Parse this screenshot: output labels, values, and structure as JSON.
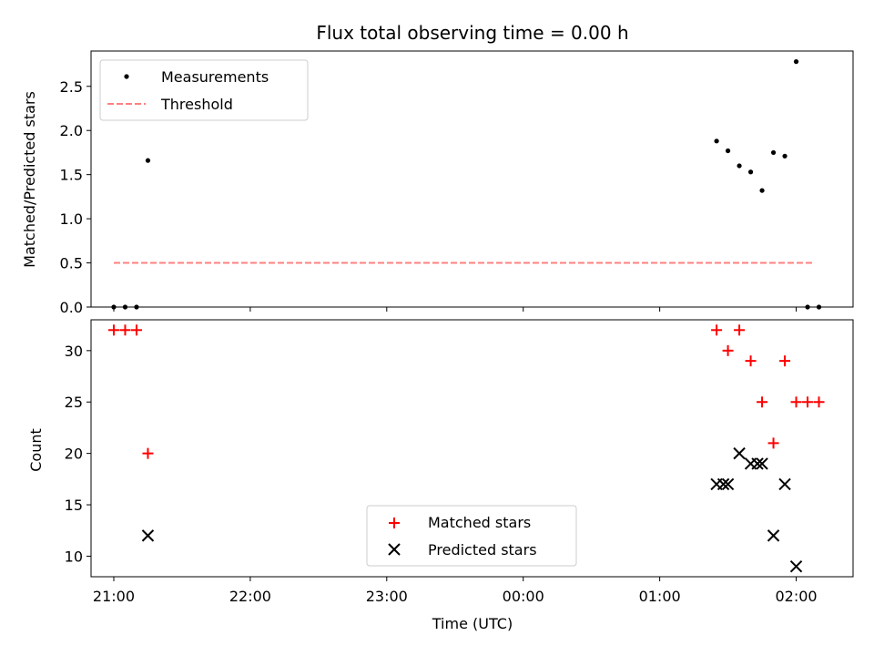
{
  "chart_data": [
    {
      "panel": "top",
      "type": "scatter",
      "title": "Flux total observing time = 0.00 h",
      "ylabel": "Matched/Predicted stars",
      "xlim": [
        "20:50",
        "02:25"
      ],
      "ylim": [
        0,
        2.9
      ],
      "yticks": [
        0.0,
        0.5,
        1.0,
        1.5,
        2.0,
        2.5
      ],
      "ytick_labels": [
        "0.0",
        "0.5",
        "1.0",
        "1.5",
        "2.0",
        "2.5"
      ],
      "legend_position": "upper-left",
      "colors": {
        "measurements": "#000000",
        "threshold": "#ff8080"
      },
      "series": [
        {
          "name": "Measurements",
          "style": "dots",
          "points": [
            {
              "x": "21:00",
              "y": 0.0
            },
            {
              "x": "21:05",
              "y": 0.0
            },
            {
              "x": "21:10",
              "y": 0.0
            },
            {
              "x": "21:15",
              "y": 1.66
            },
            {
              "x": "01:25",
              "y": 1.88
            },
            {
              "x": "01:30",
              "y": 1.77
            },
            {
              "x": "01:35",
              "y": 1.6
            },
            {
              "x": "01:40",
              "y": 1.53
            },
            {
              "x": "01:45",
              "y": 1.32
            },
            {
              "x": "01:50",
              "y": 1.75
            },
            {
              "x": "01:55",
              "y": 1.71
            },
            {
              "x": "02:00",
              "y": 2.78
            },
            {
              "x": "02:05",
              "y": 0.0
            },
            {
              "x": "02:10",
              "y": 0.0
            }
          ]
        },
        {
          "name": "Threshold",
          "style": "dashed-line",
          "points": [
            {
              "x": "21:00",
              "y": 0.5
            },
            {
              "x": "02:08",
              "y": 0.5
            }
          ]
        }
      ]
    },
    {
      "panel": "bottom",
      "type": "scatter",
      "xlabel": "Time (UTC)",
      "ylabel": "Count",
      "xlim": [
        "20:50",
        "02:25"
      ],
      "ylim": [
        8,
        33
      ],
      "yticks": [
        10,
        15,
        20,
        25,
        30
      ],
      "ytick_labels": [
        "10",
        "15",
        "20",
        "25",
        "30"
      ],
      "xticks": [
        "21:00",
        "22:00",
        "23:00",
        "00:00",
        "01:00",
        "02:00"
      ],
      "legend_position": "lower-center",
      "colors": {
        "matched": "#ff0000",
        "predicted": "#000000"
      },
      "series": [
        {
          "name": "Matched stars",
          "marker": "plus",
          "points": [
            {
              "x": "21:00",
              "y": 32
            },
            {
              "x": "21:05",
              "y": 32
            },
            {
              "x": "21:10",
              "y": 32
            },
            {
              "x": "21:15",
              "y": 20
            },
            {
              "x": "01:25",
              "y": 32
            },
            {
              "x": "01:30",
              "y": 30
            },
            {
              "x": "01:35",
              "y": 32
            },
            {
              "x": "01:40",
              "y": 29
            },
            {
              "x": "01:45",
              "y": 25
            },
            {
              "x": "01:50",
              "y": 21
            },
            {
              "x": "01:55",
              "y": 29
            },
            {
              "x": "02:00",
              "y": 25
            },
            {
              "x": "02:05",
              "y": 25
            },
            {
              "x": "02:10",
              "y": 25
            }
          ]
        },
        {
          "name": "Predicted stars",
          "marker": "x",
          "points": [
            {
              "x": "21:15",
              "y": 12
            },
            {
              "x": "01:25",
              "y": 17
            },
            {
              "x": "01:28",
              "y": 17
            },
            {
              "x": "01:30",
              "y": 17
            },
            {
              "x": "01:35",
              "y": 20
            },
            {
              "x": "01:40",
              "y": 19
            },
            {
              "x": "01:43",
              "y": 19
            },
            {
              "x": "01:45",
              "y": 19
            },
            {
              "x": "01:50",
              "y": 12
            },
            {
              "x": "01:55",
              "y": 17
            },
            {
              "x": "02:00",
              "y": 9
            }
          ]
        }
      ]
    }
  ]
}
